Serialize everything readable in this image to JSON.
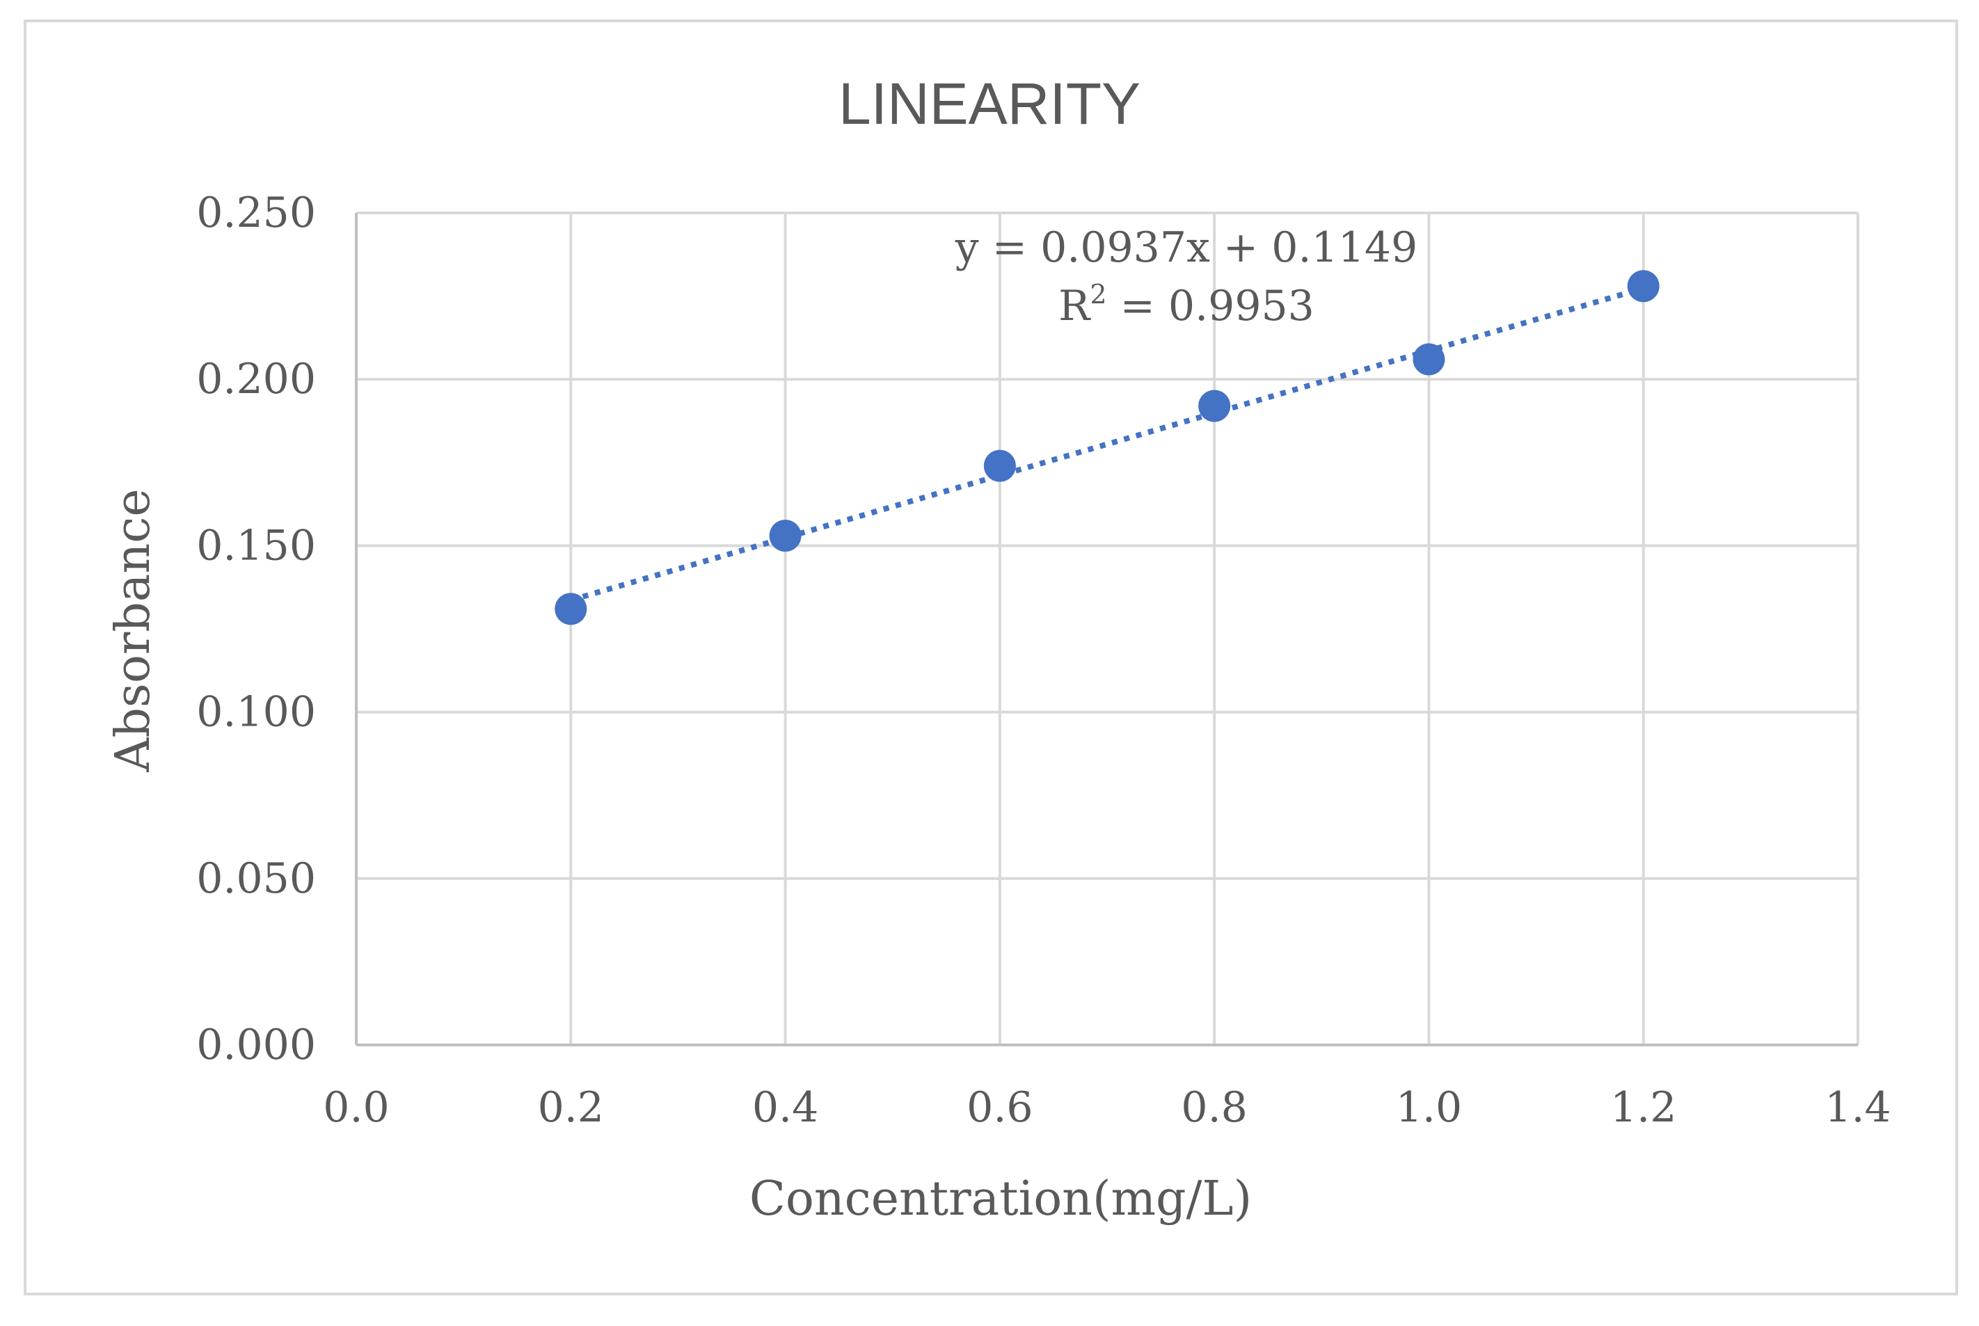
{
  "chart_data": {
    "type": "scatter",
    "title": "LINEARITY",
    "xlabel": "Concentration(mg/L)",
    "ylabel": "Absorbance",
    "xlim": [
      0.0,
      1.4
    ],
    "ylim": [
      0.0,
      0.25
    ],
    "x_ticks": [
      "0.0",
      "0.2",
      "0.4",
      "0.6",
      "0.8",
      "1.0",
      "1.2",
      "1.4"
    ],
    "y_ticks": [
      "0.000",
      "0.050",
      "0.100",
      "0.150",
      "0.200",
      "0.250"
    ],
    "grid": true,
    "series": [
      {
        "name": "Absorbance",
        "x": [
          0.2,
          0.4,
          0.6,
          0.8,
          1.0,
          1.2
        ],
        "y": [
          0.131,
          0.153,
          0.174,
          0.192,
          0.206,
          0.228
        ],
        "color": "#4472c4"
      }
    ],
    "trendline": {
      "type": "linear",
      "slope": 0.0937,
      "intercept": 0.1149,
      "x_range": [
        0.2,
        1.2
      ],
      "style": "dotted",
      "color": "#4472c4",
      "equation_label": "y = 0.0937x + 0.1149",
      "r2_prefix": "R",
      "r2_sup": "2",
      "r2_value": " = 0.9953"
    }
  }
}
